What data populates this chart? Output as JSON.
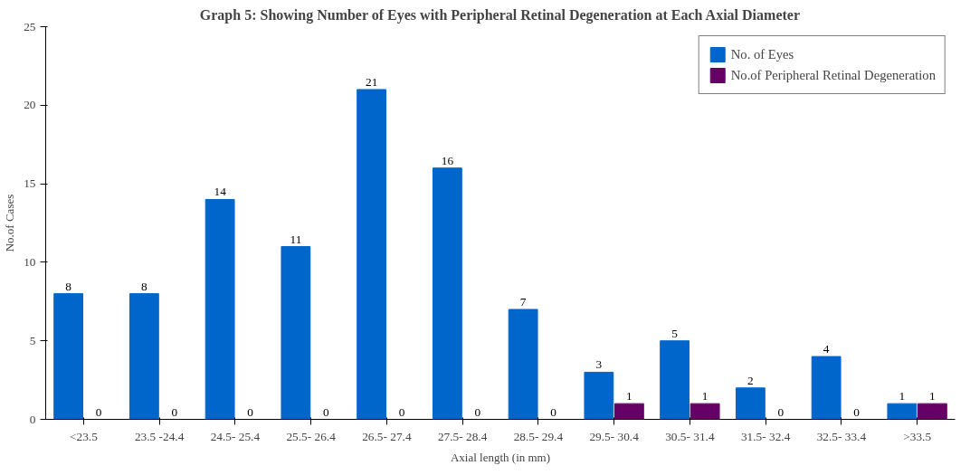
{
  "chart_data": {
    "type": "bar",
    "title": "Graph 5: Showing Number of Eyes with Peripheral Retinal Degeneration at Each Axial Diameter",
    "xlabel": "Axial length (in mm)",
    "ylabel": "No.of Cases",
    "categories": [
      "<23.5",
      "23.5 -24.4",
      "24.5- 25.4",
      "25.5- 26.4",
      "26.5- 27.4",
      "27.5- 28.4",
      "28.5- 29.4",
      "29.5- 30.4",
      "30.5- 31.4",
      "31.5- 32.4",
      "32.5- 33.4",
      ">33.5"
    ],
    "series": [
      {
        "name": "No. of Eyes",
        "color": "#0066cc",
        "values": [
          8,
          8,
          14,
          11,
          21,
          16,
          7,
          3,
          5,
          2,
          4,
          1
        ]
      },
      {
        "name": "No.of Peripheral Retinal Degeneration",
        "color": "#660066",
        "values": [
          0,
          0,
          0,
          0,
          0,
          0,
          0,
          1,
          1,
          0,
          0,
          1
        ]
      }
    ],
    "ylim": [
      0,
      25
    ],
    "yticks": [
      0,
      5,
      10,
      15,
      20,
      25
    ],
    "grid": false,
    "legend": "top right",
    "data_labels": true
  }
}
